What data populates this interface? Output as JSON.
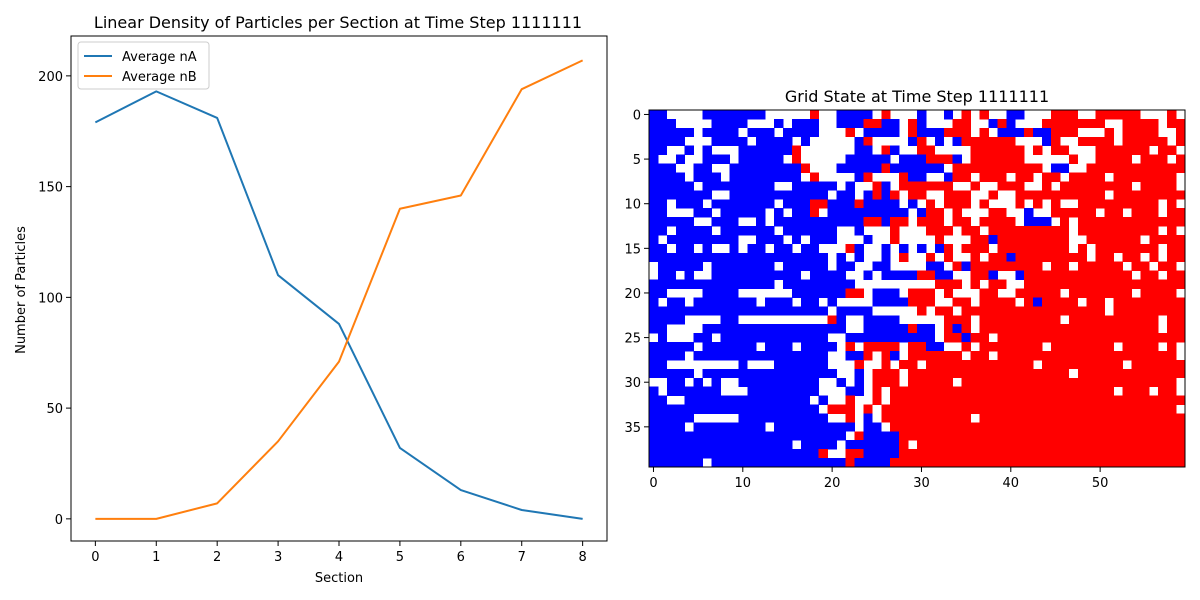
{
  "chart_data": [
    {
      "type": "line",
      "title": "Linear Density of Particles per Section at Time Step 1111111",
      "xlabel": "Section",
      "ylabel": "Number of Particles",
      "x": [
        0,
        1,
        2,
        3,
        4,
        5,
        6,
        7,
        8
      ],
      "xlim": [
        -0.4,
        8.4
      ],
      "ylim": [
        -10,
        218
      ],
      "xticks": [
        "0",
        "1",
        "2",
        "3",
        "4",
        "5",
        "6",
        "7",
        "8"
      ],
      "yticks": [
        "0",
        "50",
        "100",
        "150",
        "200"
      ],
      "legend": "top-left",
      "grid": false,
      "series": [
        {
          "name": "Average nA",
          "color": "#1f77b4",
          "values": [
            179,
            193,
            181,
            110,
            88,
            32,
            13,
            4,
            0
          ]
        },
        {
          "name": "Average nB",
          "color": "#ff7f0e",
          "values": [
            0,
            0,
            7,
            35,
            71,
            140,
            146,
            194,
            207
          ]
        }
      ]
    },
    {
      "type": "heatmap",
      "title": "Grid State at Time Step 1111111",
      "rows": 40,
      "cols": 60,
      "xticks": [
        "0",
        "10",
        "20",
        "30",
        "40",
        "50"
      ],
      "yticks": [
        "0",
        "5",
        "10",
        "15",
        "20",
        "25",
        "30",
        "35"
      ],
      "legend": "none",
      "colors": {
        "A": "#0000ff",
        "B": "#ff0000",
        "empty": "#ffffff"
      },
      "grid_rows": [
        "AAWWWWAAAAAAAWWWWWBWWAAAAWBWWWAWWAWBWBWWAAWWWBBBWWBBBBBWWWBW",
        "AAAWWWWAAAAWWWAWAAAWWAAABBAAWBAWWWBBWWABAWWWBBBBBBBWWBBBBWBB",
        "AAAAAWAAAAWAAAWAAAAWWWBWAAAAWBAAABBBWBWAAABAABBBWWWBWBBBBWWB",
        "AAAAWWWAAAAWAAAAWAWWWWWABWWWWABWAWABBBBBBWWWABWWBBBBWBBBBBWB",
        "AAWWAWAWWWAAAAAABWWWWWWAAWBAWWBBWWWWBBBBBBWBWBBWWWBBBBBBWBBW",
        "AWWAWWAAAWAAAAAWBWWWWWAAAAAWAAABBBAWBBBBBBWWWWWBWWBBBBWBBBWB",
        "AAAWWAAWWAAAAAAAABWWWAAAAABAAAAAAWBBBBBBBBBBWAAWWBBBBBBBBBBB",
        "AAAAWAAAWAAAAAAAAWBWWWWABWWWBAAWWABBWBBBWBBWBBWBBBBWBBBBBBBW",
        "AAAAAWAAAAAAAAWWAAAAAWAWWBAWBBBBBBWWBWWBBBWWBWBBBBBBBBWBBBBW",
        "AAAAAAAWWAAAAAAAAAAAWAAWABABWBBWWBBBWWBWWBBBBBBBBBBWBBBBBBBB",
        "AAWAAAWAAAAAAAWAAABBAAABAAAAWAWBWBBBWBWWWBWBWBWWBBBBBBBBBWBW",
        "AAWWWAAWAAAAAWAWAABWAAAAAAAAAWABBWBWWWBBWWAWWBBBBBWBBWBBBWBB",
        "AAAAAWWAAAWWAWAAAAAAAAAABBABBWBBBWBBWBBBBWAAAWBWBBBBBBBBBBBB",
        "AAWAAAAWAAAAAAWAAAAAAWWAWWWBWWWBBBWBBWBBBBBBBBBWBBBBBBBBBWBW",
        "AWAAAAAAAAWWAAAWAWAAAWWWAWWBWWWWBWWWBBABBBBBBBBWWBBBBBBWBBBB",
        "AAWAAWAWWAWAAWAAWAAWWWBAWWAWAWAWABWBBBWBBBBBBBBWBWBBBBBBBWBB",
        "AAAAAAAAAAAAAAAAAAAAWAWAWWAWBWWBWBWWBWBBABBBBBBBBWBBWBBWBWBB",
        "WAAAAAWAAAAAAAWAAAAAWAAWWAAWWWWAAWBABBBBBBBBWBBWBBBBBWBBWBBW",
        "WAAWAWWAAAAAAAAAAWAAAAWWAWAAAABBAAWWBBAWWABBBBBBBBBBBBWBBWBB",
        "AAAAAAAAAAAAAAWAAAAAAAAWWWWWWWWWBBBWBWBBWWBBBBBBBBBBBBBBBBBB",
        "AAWWWWAAAAWWWWWWAAAAAABBWAAAWBBBWBWWWBBWWBBBBBWBBBBBBBWBBBBW",
        "AWAAWAAAAAAAWAAAWAAWAWWWWAAAABBBWWBBWBBBBWBABBBBWBBWBBBBBBBB",
        "AAAAAAAAAAAAAAAAAAAAWAAAAWWWWWBWBBWBBBBBBBBBBBBBBBBWBBBBBBBB",
        "AAAAWWWWAAWWWWWWWWWWBAWWAAAAWWWWWBBBWBBBBBBBBBWBBBBBBBBBBWBB",
        "AAWWWWAAAAAAAAAAAAAAAAWWAAAAABAAWBABWBBBBBBBBBBBBBBBBBBBBWBB",
        "WAWWWAAWAAAAAAAAAAAAWWAAAAAAAAAAWBBABBWBBBBBBBBBBBBBBBBBBBBB",
        "AAAAAWAAAAAAWAAAWAAAAWBWBBBBWBBAAWWBWBBBBBBBWBBBBBBBWBBBBWBW",
        "AAAAWAAAAAAAAAAAAAAAWWAABWBAWBBBBBBWBBWBBBBBBBBBBBBBBBBBBBBW",
        "AAWWWWWWWWAWWWAAAAAAWWWBWWBWBBWBBBBBBBBBBBBWBBBBBBBBBWBBBBBB",
        "AAAAAWAAAAAAAAAAAAAAAWWAWBBBWBBBBBBBBBBBBBBBBBBWBBBBBBBBBBBB",
        "WWAAWAWAWWAAAAAAAAAWWAWAWBBBWBBBBBWBBBBBBBBBBBBBBBBBBBBBBBBW",
        "AWAAAAAAWWWAAAAAAAAWWWAAWBWBBBBBBBBBBBBBBBBBBBBBBBBBWBBBWBBW",
        "AAWWAAAAAAAAAAAAAAWAWWBWWBWBBBBBBBBBBBBBBBBBBBBBBBBBBBBBBBBB",
        "AAAAAAAAAAAAAAAAAAAWBBBWBWBBBBBBBBBBBBBBBBBBBBBBBBBBBBBBBBBW",
        "AAAAAWWWWWAAAAAAAAAAWWBWAWBBBBBBBBBBWBBBBBBBBBBBBBBBBBBBBBBB",
        "AAAAWAAAAAAAAWAAAAAAAAAWAAWBBBBBBBBBBBBBBBBBBBBBBBBBBBBBBBBB",
        "AAAAAAAAAAAAAAAAAAAAAAWBAAAABBBBBBBBBBBBBBBBBBBBBBBBBBBBBBBB",
        "AAAAAAAAAAAAAAAAWAAAAWAAAAAABWBBBBBBBBBBBBBBBBBBBBBBBBBBBBBB",
        "AAAAAAAAAAAAAAAAAAABWWBBAAAABBBBBBBBBBBBBBBBBBBBBBBBBBBBBBBB",
        "AAAAAAWAAAAAAAAAAAAAAABAAAABBBBBBBBBBBBBBBBBBBBBBBBBBBBBBBBB"
      ]
    }
  ]
}
